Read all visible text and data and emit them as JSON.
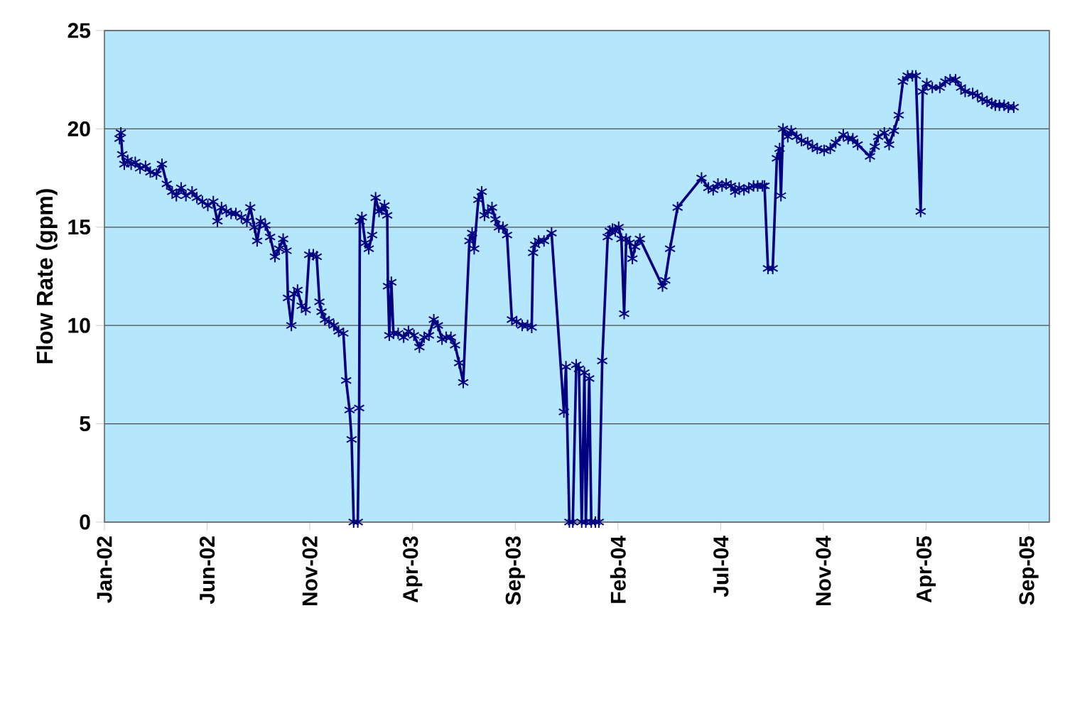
{
  "chart_data": {
    "type": "line",
    "ylabel": "Flow Rate (gpm)",
    "color": "#000080",
    "marker": "cross",
    "grid": "y",
    "xlim": [
      "2002-01-13",
      "2005-10-24"
    ],
    "ylim": [
      0,
      25
    ],
    "yticks": [
      0,
      5,
      10,
      15,
      20,
      25
    ],
    "xticks": [
      {
        "value": "2002-01-13",
        "label": "Jan-02"
      },
      {
        "value": "2002-06-12",
        "label": "Jun-02"
      },
      {
        "value": "2002-11-09",
        "label": "Nov-02"
      },
      {
        "value": "2003-04-08",
        "label": "Apr-03"
      },
      {
        "value": "2003-09-05",
        "label": "Sep-03"
      },
      {
        "value": "2004-02-02",
        "label": "Feb-04"
      },
      {
        "value": "2004-07-01",
        "label": "Jul-04"
      },
      {
        "value": "2004-11-28",
        "label": "Nov-04"
      },
      {
        "value": "2005-04-27",
        "label": "Apr-05"
      },
      {
        "value": "2005-09-24",
        "label": "Sep-05"
      }
    ],
    "x": [
      "2002-02-04",
      "2002-02-06",
      "2002-02-08",
      "2002-02-11",
      "2002-02-16",
      "2002-02-21",
      "2002-02-27",
      "2002-03-06",
      "2002-03-14",
      "2002-03-21",
      "2002-03-30",
      "2002-04-07",
      "2002-04-14",
      "2002-04-22",
      "2002-04-28",
      "2002-05-05",
      "2002-05-12",
      "2002-05-21",
      "2002-05-28",
      "2002-06-05",
      "2002-06-13",
      "2002-06-21",
      "2002-06-27",
      "2002-07-03",
      "2002-07-10",
      "2002-07-17",
      "2002-07-24",
      "2002-08-01",
      "2002-08-09",
      "2002-08-14",
      "2002-08-20",
      "2002-08-24",
      "2002-08-29",
      "2002-09-05",
      "2002-09-12",
      "2002-09-19",
      "2002-09-25",
      "2002-10-01",
      "2002-10-06",
      "2002-10-08",
      "2002-10-13",
      "2002-10-17",
      "2002-10-22",
      "2002-10-28",
      "2002-11-03",
      "2002-11-08",
      "2002-11-14",
      "2002-11-19",
      "2002-11-23",
      "2002-11-26",
      "2002-12-01",
      "2002-12-07",
      "2002-12-14",
      "2002-12-21",
      "2002-12-28",
      "2003-01-01",
      "2003-01-06",
      "2003-01-09",
      "2003-01-12",
      "2003-01-18",
      "2003-01-20",
      "2003-01-21",
      "2003-01-24",
      "2003-01-29",
      "2003-02-03",
      "2003-02-08",
      "2003-02-13",
      "2003-02-18",
      "2003-02-22",
      "2003-02-26",
      "2003-03-02",
      "2003-03-03",
      "2003-03-05",
      "2003-03-08",
      "2003-03-11",
      "2003-03-18",
      "2003-03-26",
      "2003-04-02",
      "2003-04-10",
      "2003-04-18",
      "2003-04-25",
      "2003-05-02",
      "2003-05-09",
      "2003-05-15",
      "2003-05-21",
      "2003-05-27",
      "2003-06-03",
      "2003-06-09",
      "2003-06-15",
      "2003-06-21",
      "2003-06-30",
      "2003-07-04",
      "2003-07-07",
      "2003-07-13",
      "2003-07-18",
      "2003-07-22",
      "2003-07-27",
      "2003-08-02",
      "2003-08-07",
      "2003-08-12",
      "2003-08-18",
      "2003-08-24",
      "2003-08-31",
      "2003-09-07",
      "2003-09-15",
      "2003-09-23",
      "2003-09-29",
      "2003-10-01",
      "2003-10-04",
      "2003-10-09",
      "2003-10-17",
      "2003-10-28",
      "2003-11-15",
      "2003-11-18",
      "2003-11-23",
      "2003-11-28",
      "2003-12-03",
      "2003-12-07",
      "2003-12-11",
      "2003-12-15",
      "2003-12-17",
      "2003-12-22",
      "2003-12-25",
      "2003-12-31",
      "2004-01-05",
      "2004-01-10",
      "2004-01-18",
      "2004-01-21",
      "2004-01-25",
      "2004-01-29",
      "2004-02-03",
      "2004-02-07",
      "2004-02-11",
      "2004-02-14",
      "2004-02-19",
      "2004-02-23",
      "2004-02-27",
      "2004-03-05",
      "2004-04-07",
      "2004-04-11",
      "2004-04-18",
      "2004-04-29",
      "2004-06-03",
      "2004-06-13",
      "2004-06-20",
      "2004-06-27",
      "2004-07-03",
      "2004-07-09",
      "2004-07-16",
      "2004-07-22",
      "2004-07-28",
      "2004-08-04",
      "2004-08-11",
      "2004-08-18",
      "2004-08-24",
      "2004-08-31",
      "2004-09-03",
      "2004-09-08",
      "2004-09-15",
      "2004-09-21",
      "2004-09-25",
      "2004-09-27",
      "2004-09-30",
      "2004-10-07",
      "2004-10-12",
      "2004-10-20",
      "2004-10-27",
      "2004-11-05",
      "2004-11-12",
      "2004-11-19",
      "2004-11-29",
      "2004-12-08",
      "2004-12-16",
      "2004-12-27",
      "2005-01-03",
      "2005-01-10",
      "2005-01-17",
      "2005-02-04",
      "2005-02-11",
      "2005-02-16",
      "2005-02-25",
      "2005-03-04",
      "2005-03-11",
      "2005-03-18",
      "2005-03-24",
      "2005-03-31",
      "2005-04-07",
      "2005-04-12",
      "2005-04-19",
      "2005-04-22",
      "2005-04-28",
      "2005-05-06",
      "2005-05-17",
      "2005-05-25",
      "2005-06-01",
      "2005-06-09",
      "2005-06-17",
      "2005-06-23",
      "2005-07-04",
      "2005-07-11",
      "2005-07-18",
      "2005-07-25",
      "2005-08-01",
      "2005-08-06",
      "2005-08-12",
      "2005-08-19",
      "2005-08-25",
      "2005-09-02"
    ],
    "values": [
      19.5,
      19.8,
      18.7,
      18.2,
      18.4,
      18.2,
      18.3,
      18.0,
      18.1,
      17.8,
      17.7,
      18.2,
      17.2,
      16.8,
      16.6,
      17.0,
      16.6,
      16.8,
      16.5,
      16.3,
      16.1,
      16.3,
      15.3,
      16.0,
      15.8,
      15.7,
      15.7,
      15.5,
      15.3,
      16.0,
      15.0,
      14.3,
      15.3,
      15.1,
      14.5,
      13.5,
      13.9,
      14.4,
      13.8,
      11.4,
      10.0,
      11.6,
      11.8,
      11.0,
      10.8,
      13.6,
      13.6,
      13.5,
      11.2,
      10.7,
      10.3,
      10.2,
      10.0,
      9.7,
      9.6,
      7.2,
      5.7,
      4.2,
      0,
      0,
      5.8,
      15.3,
      15.5,
      14.2,
      13.9,
      14.6,
      16.5,
      15.8,
      15.9,
      16.1,
      15.6,
      12.0,
      9.5,
      12.2,
      9.6,
      9.6,
      9.4,
      9.7,
      9.5,
      8.9,
      9.4,
      9.5,
      10.3,
      10.0,
      9.3,
      9.4,
      9.4,
      9.0,
      8.1,
      7.1,
      14.3,
      14.7,
      13.9,
      16.4,
      16.8,
      15.6,
      15.8,
      16.0,
      15.4,
      15.0,
      15.0,
      14.6,
      10.3,
      10.2,
      10.0,
      10.0,
      9.9,
      13.7,
      14.1,
      14.3,
      14.3,
      14.7,
      5.6,
      7.9,
      0,
      0,
      8.0,
      7.8,
      0,
      7.6,
      0,
      7.3,
      0,
      0,
      0,
      8.2,
      14.5,
      14.8,
      14.9,
      14.8,
      15.0,
      14.4,
      10.6,
      14.4,
      14.2,
      13.4,
      14.0,
      14.4,
      12.0,
      12.3,
      13.9,
      16.0,
      17.5,
      17.0,
      16.9,
      17.2,
      17.1,
      17.2,
      17.1,
      16.8,
      17.0,
      16.9,
      17.0,
      17.1,
      17.1,
      17.1,
      17.1,
      12.9,
      12.9,
      18.5,
      19.0,
      16.6,
      20.0,
      19.6,
      19.9,
      19.6,
      19.4,
      19.3,
      19.1,
      19.0,
      18.9,
      19.0,
      19.3,
      19.7,
      19.5,
      19.5,
      19.2,
      18.6,
      19.1,
      19.6,
      19.8,
      19.2,
      19.9,
      20.7,
      22.4,
      22.7,
      22.7,
      22.7,
      15.8,
      21.9,
      22.3,
      22.1,
      22.1,
      22.4,
      22.5,
      22.5,
      22.1,
      21.9,
      21.8,
      21.7,
      21.5,
      21.4,
      21.3,
      21.2,
      21.2,
      21.2,
      21.1,
      21.1
    ]
  }
}
